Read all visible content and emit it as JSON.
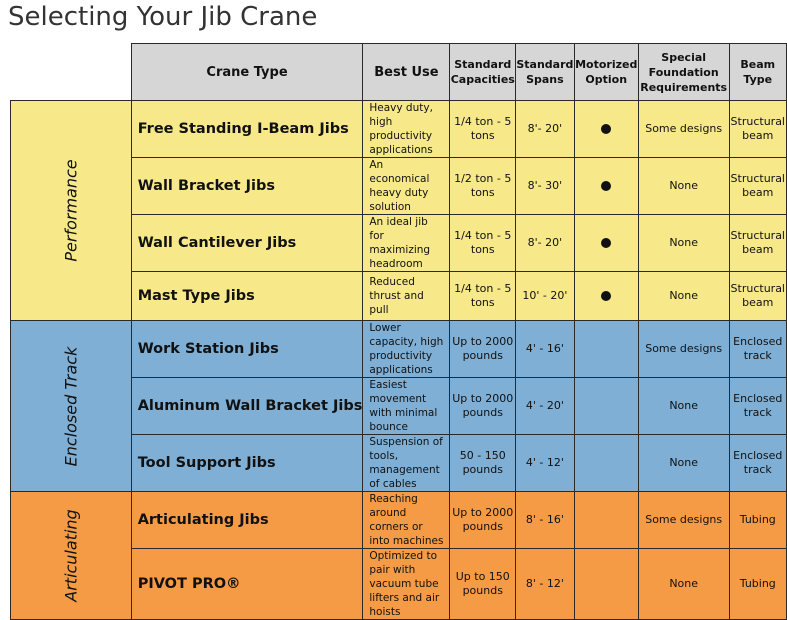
{
  "title": "Selecting Your Jib Crane",
  "headers": {
    "crane_type": "Crane Type",
    "best_use": "Best Use",
    "capacities": "Standard Capacities",
    "spans": "Standard Spans",
    "motorized": "Motorized Option",
    "foundation": "Special Foundation Requirements",
    "beam_type": "Beam Type"
  },
  "sections": {
    "performance": "Performance",
    "enclosed": "Enclosed Track",
    "articulating": "Articulating"
  },
  "colors": {
    "performance": "#f7e98a",
    "enclosed": "#7fafd5",
    "articulating": "#f59b45",
    "header": "#d6d6d6"
  },
  "rows": [
    {
      "name": "Free Standing I-Beam Jibs",
      "use": "Heavy duty, high productivity applications",
      "capacity": "1/4 ton - 5 tons",
      "span": "8'- 20'",
      "motorized": "●",
      "foundation": "Some designs",
      "beam": "Structural beam"
    },
    {
      "name": "Wall Bracket Jibs",
      "use": "An economical heavy duty solution",
      "capacity": "1/2 ton - 5 tons",
      "span": "8'- 30'",
      "motorized": "●",
      "foundation": "None",
      "beam": "Structural beam"
    },
    {
      "name": "Wall Cantilever Jibs",
      "use": "An ideal jib for maximizing headroom",
      "capacity": "1/4 ton - 5 tons",
      "span": "8'- 20'",
      "motorized": "●",
      "foundation": "None",
      "beam": "Structural beam"
    },
    {
      "name": "Mast Type Jibs",
      "use": "Reduced thrust and pull",
      "capacity": "1/4 ton - 5 tons",
      "span": "10' - 20'",
      "motorized": "●",
      "foundation": "None",
      "beam": "Structural beam"
    },
    {
      "name": "Work Station Jibs",
      "use": "Lower capacity, high productivity applications",
      "capacity": "Up to 2000 pounds",
      "span": "4' - 16'",
      "motorized": "",
      "foundation": "Some designs",
      "beam": "Enclosed track"
    },
    {
      "name": "Aluminum Wall Bracket Jibs",
      "use": "Easiest movement with minimal bounce",
      "capacity": "Up to 2000 pounds",
      "span": "4' - 20'",
      "motorized": "",
      "foundation": "None",
      "beam": "Enclosed track"
    },
    {
      "name": "Tool Support Jibs",
      "use": "Suspension of tools, management of cables",
      "capacity": "50 - 150 pounds",
      "span": "4' - 12'",
      "motorized": "",
      "foundation": "None",
      "beam": "Enclosed track"
    },
    {
      "name": "Articulating Jibs",
      "use": "Reaching around corners or into machines",
      "capacity": "Up to 2000 pounds",
      "span": "8' - 16'",
      "motorized": "",
      "foundation": "Some designs",
      "beam": "Tubing"
    },
    {
      "name": "PIVOT PRO®",
      "use": "Optimized to pair with vacuum tube lifters and air hoists",
      "capacity": "Up to 150 pounds",
      "span": "8' - 12'",
      "motorized": "",
      "foundation": "None",
      "beam": "Tubing"
    }
  ]
}
